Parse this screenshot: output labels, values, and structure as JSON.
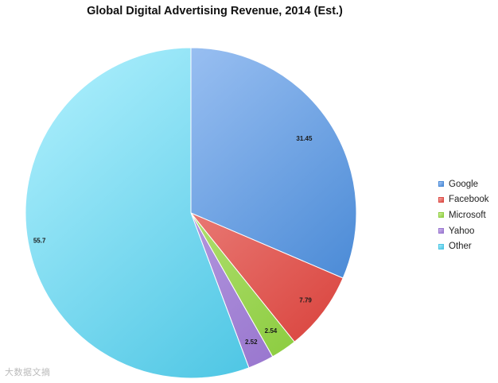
{
  "chart_data": {
    "type": "pie",
    "title": "Global Digital Advertising Revenue, 2014 (Est.)",
    "series": [
      {
        "name": "Google",
        "value": 31.45,
        "label": "31.45",
        "color_light": "#a9caf7",
        "color_dark": "#4a8ad6"
      },
      {
        "name": "Facebook",
        "value": 7.79,
        "label": "7.79",
        "color_light": "#f6aaa6",
        "color_dark": "#dc4c46"
      },
      {
        "name": "Microsoft",
        "value": 2.54,
        "label": "2.54",
        "color_light": "#d3f09d",
        "color_dark": "#8fce44"
      },
      {
        "name": "Yahoo",
        "value": 2.52,
        "label": "2.52",
        "color_light": "#cdb7ee",
        "color_dark": "#9a78cf"
      },
      {
        "name": "Other",
        "value": 55.7,
        "label": "55.7",
        "color_light": "#a6ecfb",
        "color_dark": "#4ec6e4"
      }
    ],
    "legend_position": "right",
    "start_angle": "12 o'clock",
    "direction": "clockwise"
  },
  "watermark": {
    "text": "大数据文摘"
  }
}
